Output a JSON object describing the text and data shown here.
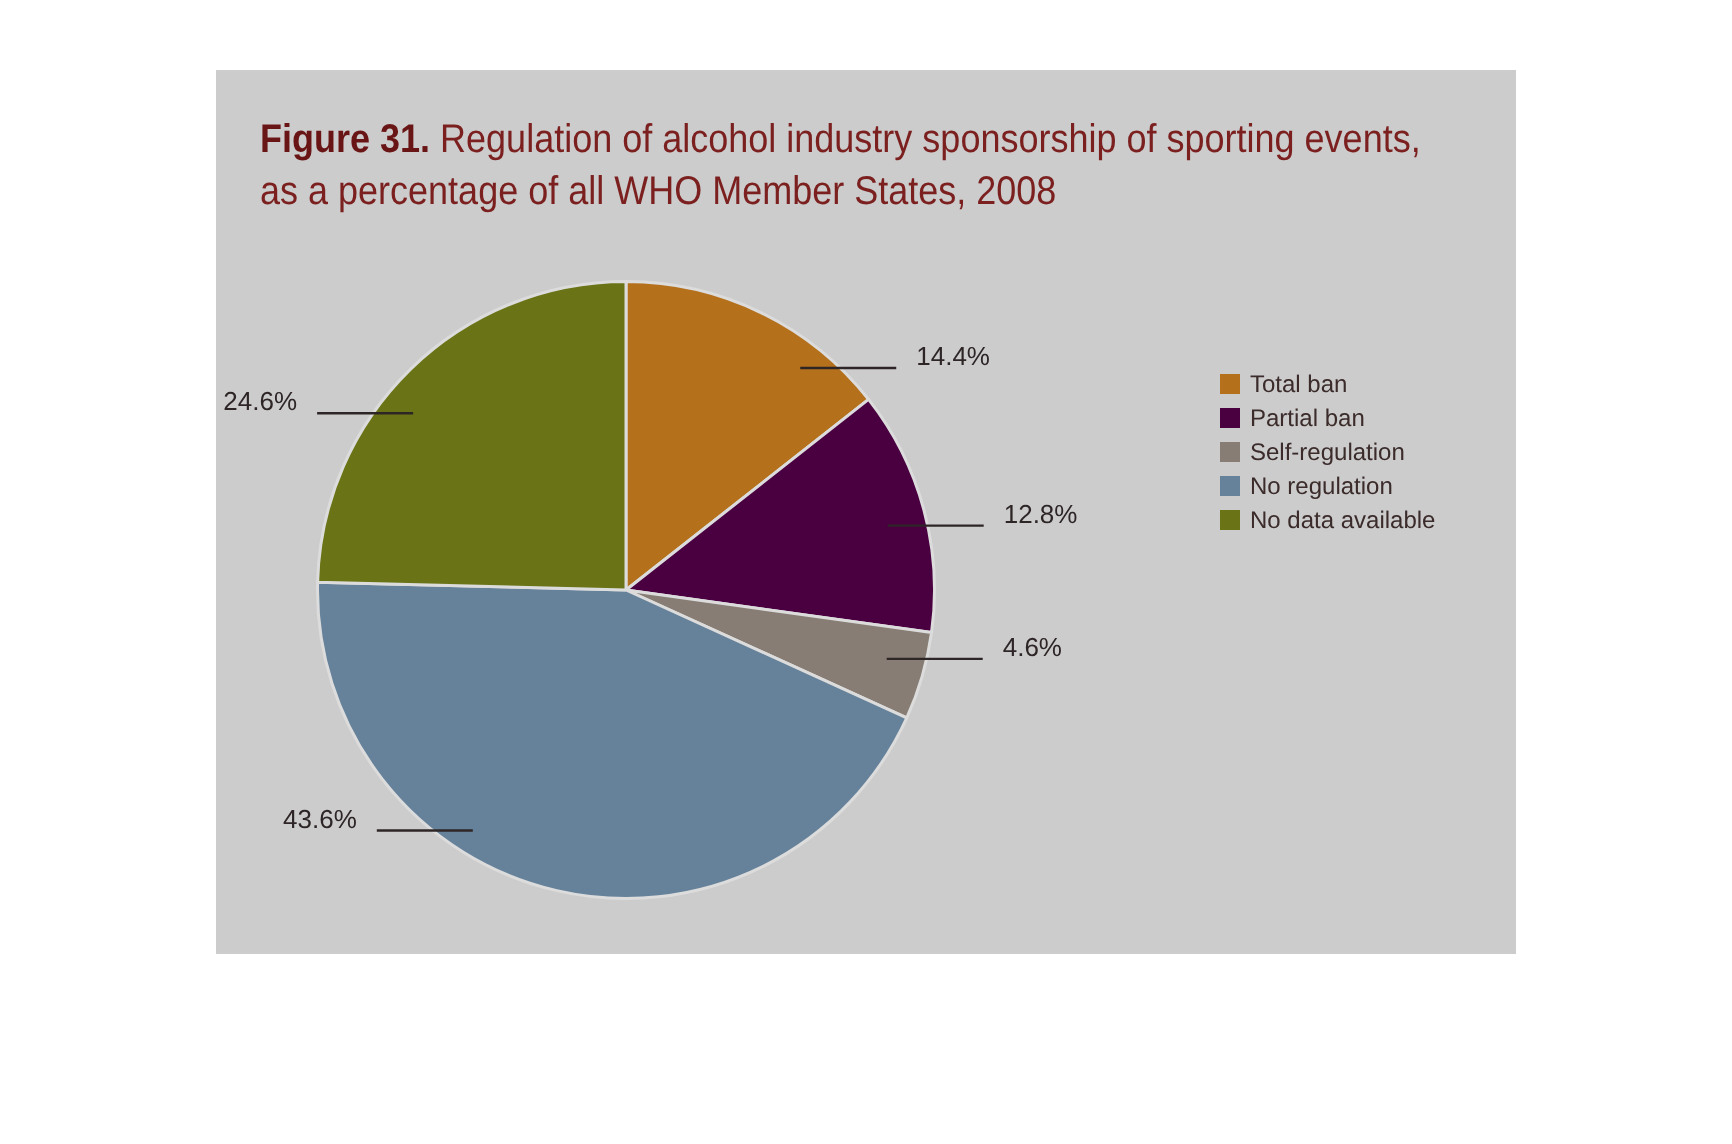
{
  "chart_data": {
    "type": "pie",
    "title": "Figure 31. Regulation of alcohol industry sponsorship of sporting events, as a percentage of all WHO Member States, 2008",
    "categories": [
      "Total ban",
      "Partial ban",
      "Self-regulation",
      "No regulation",
      "No data available"
    ],
    "values": [
      14.4,
      12.8,
      4.6,
      43.6,
      24.6
    ],
    "colors": [
      "#b5701b",
      "#4a0040",
      "#877d74",
      "#66829a",
      "#6a7315"
    ],
    "value_labels": [
      "14.4%",
      "12.8%",
      "4.6%",
      "43.6%",
      "24.6%"
    ],
    "legend": "right"
  }
}
